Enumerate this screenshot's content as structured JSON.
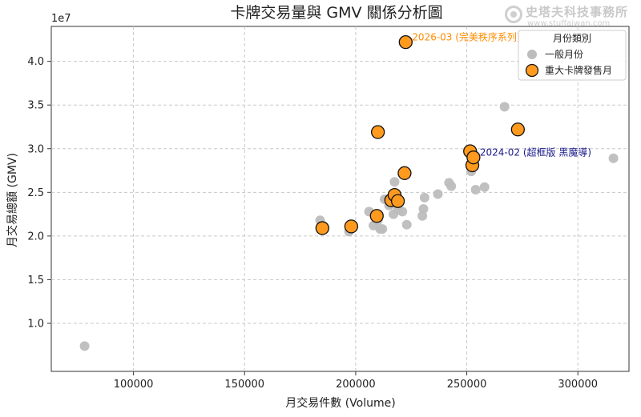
{
  "watermark": {
    "text": "史塔夫科技事務所",
    "url": "www.stuffaiwan.com"
  },
  "chart_data": {
    "type": "scatter",
    "title": "卡牌交易量與 GMV 關係分析圖",
    "xlabel": "月交易件數 (Volume)",
    "ylabel": "月交易總額 (GMV)",
    "y_offset_label": "1e7",
    "xlim": [
      63000,
      323000
    ],
    "ylim": [
      0.45,
      4.4
    ],
    "x_ticks": [
      100000,
      150000,
      200000,
      250000,
      300000
    ],
    "x_tick_labels": [
      "100000",
      "150000",
      "200000",
      "250000",
      "300000"
    ],
    "y_ticks": [
      1.0,
      1.5,
      2.0,
      2.5,
      3.0,
      3.5,
      4.0
    ],
    "y_tick_labels": [
      "1.0",
      "1.5",
      "2.0",
      "2.5",
      "3.0",
      "3.5",
      "4.0"
    ],
    "grid": true,
    "legend": {
      "title": "月份類別",
      "position": "top-right",
      "entries": [
        {
          "label": "一般月份",
          "color": "#bdbdbd"
        },
        {
          "label": "重大卡牌發售月",
          "color": "#ff9a1f"
        }
      ]
    },
    "series": [
      {
        "name": "一般月份",
        "color": "#bdbdbd",
        "points": [
          [
            78000,
            0.74
          ],
          [
            184000,
            2.18
          ],
          [
            197000,
            2.05
          ],
          [
            206000,
            2.28
          ],
          [
            208000,
            2.12
          ],
          [
            210000,
            2.18
          ],
          [
            211000,
            2.08
          ],
          [
            212000,
            2.08
          ],
          [
            213000,
            2.42
          ],
          [
            215000,
            2.35
          ],
          [
            216000,
            2.38
          ],
          [
            217000,
            2.25
          ],
          [
            217500,
            2.62
          ],
          [
            219000,
            2.3
          ],
          [
            221000,
            2.28
          ],
          [
            223000,
            2.13
          ],
          [
            230000,
            2.23
          ],
          [
            230500,
            2.31
          ],
          [
            231000,
            2.44
          ],
          [
            237000,
            2.48
          ],
          [
            242000,
            2.61
          ],
          [
            243000,
            2.57
          ],
          [
            252000,
            2.74
          ],
          [
            254000,
            2.53
          ],
          [
            258000,
            2.56
          ],
          [
            267000,
            3.48
          ],
          [
            316000,
            2.89
          ]
        ]
      },
      {
        "name": "重大卡牌發售月",
        "color": "#ff9a1f",
        "points": [
          [
            185000,
            2.09
          ],
          [
            198000,
            2.11
          ],
          [
            209500,
            2.23
          ],
          [
            210000,
            3.19
          ],
          [
            216000,
            2.41
          ],
          [
            217500,
            2.47
          ],
          [
            219000,
            2.4
          ],
          [
            222000,
            2.72
          ],
          [
            222500,
            4.22
          ],
          [
            251500,
            2.97
          ],
          [
            252500,
            2.81
          ],
          [
            253000,
            2.9
          ],
          [
            273000,
            3.22
          ]
        ]
      }
    ],
    "annotations": [
      {
        "text": "2026-03 (完美秩序系列)",
        "x": 222500,
        "y": 4.22,
        "color": "#ff8c00"
      },
      {
        "text": "2024-02 (超框版 黑魔導)",
        "x": 253000,
        "y": 2.9,
        "color": "#1a1a8c"
      }
    ]
  }
}
